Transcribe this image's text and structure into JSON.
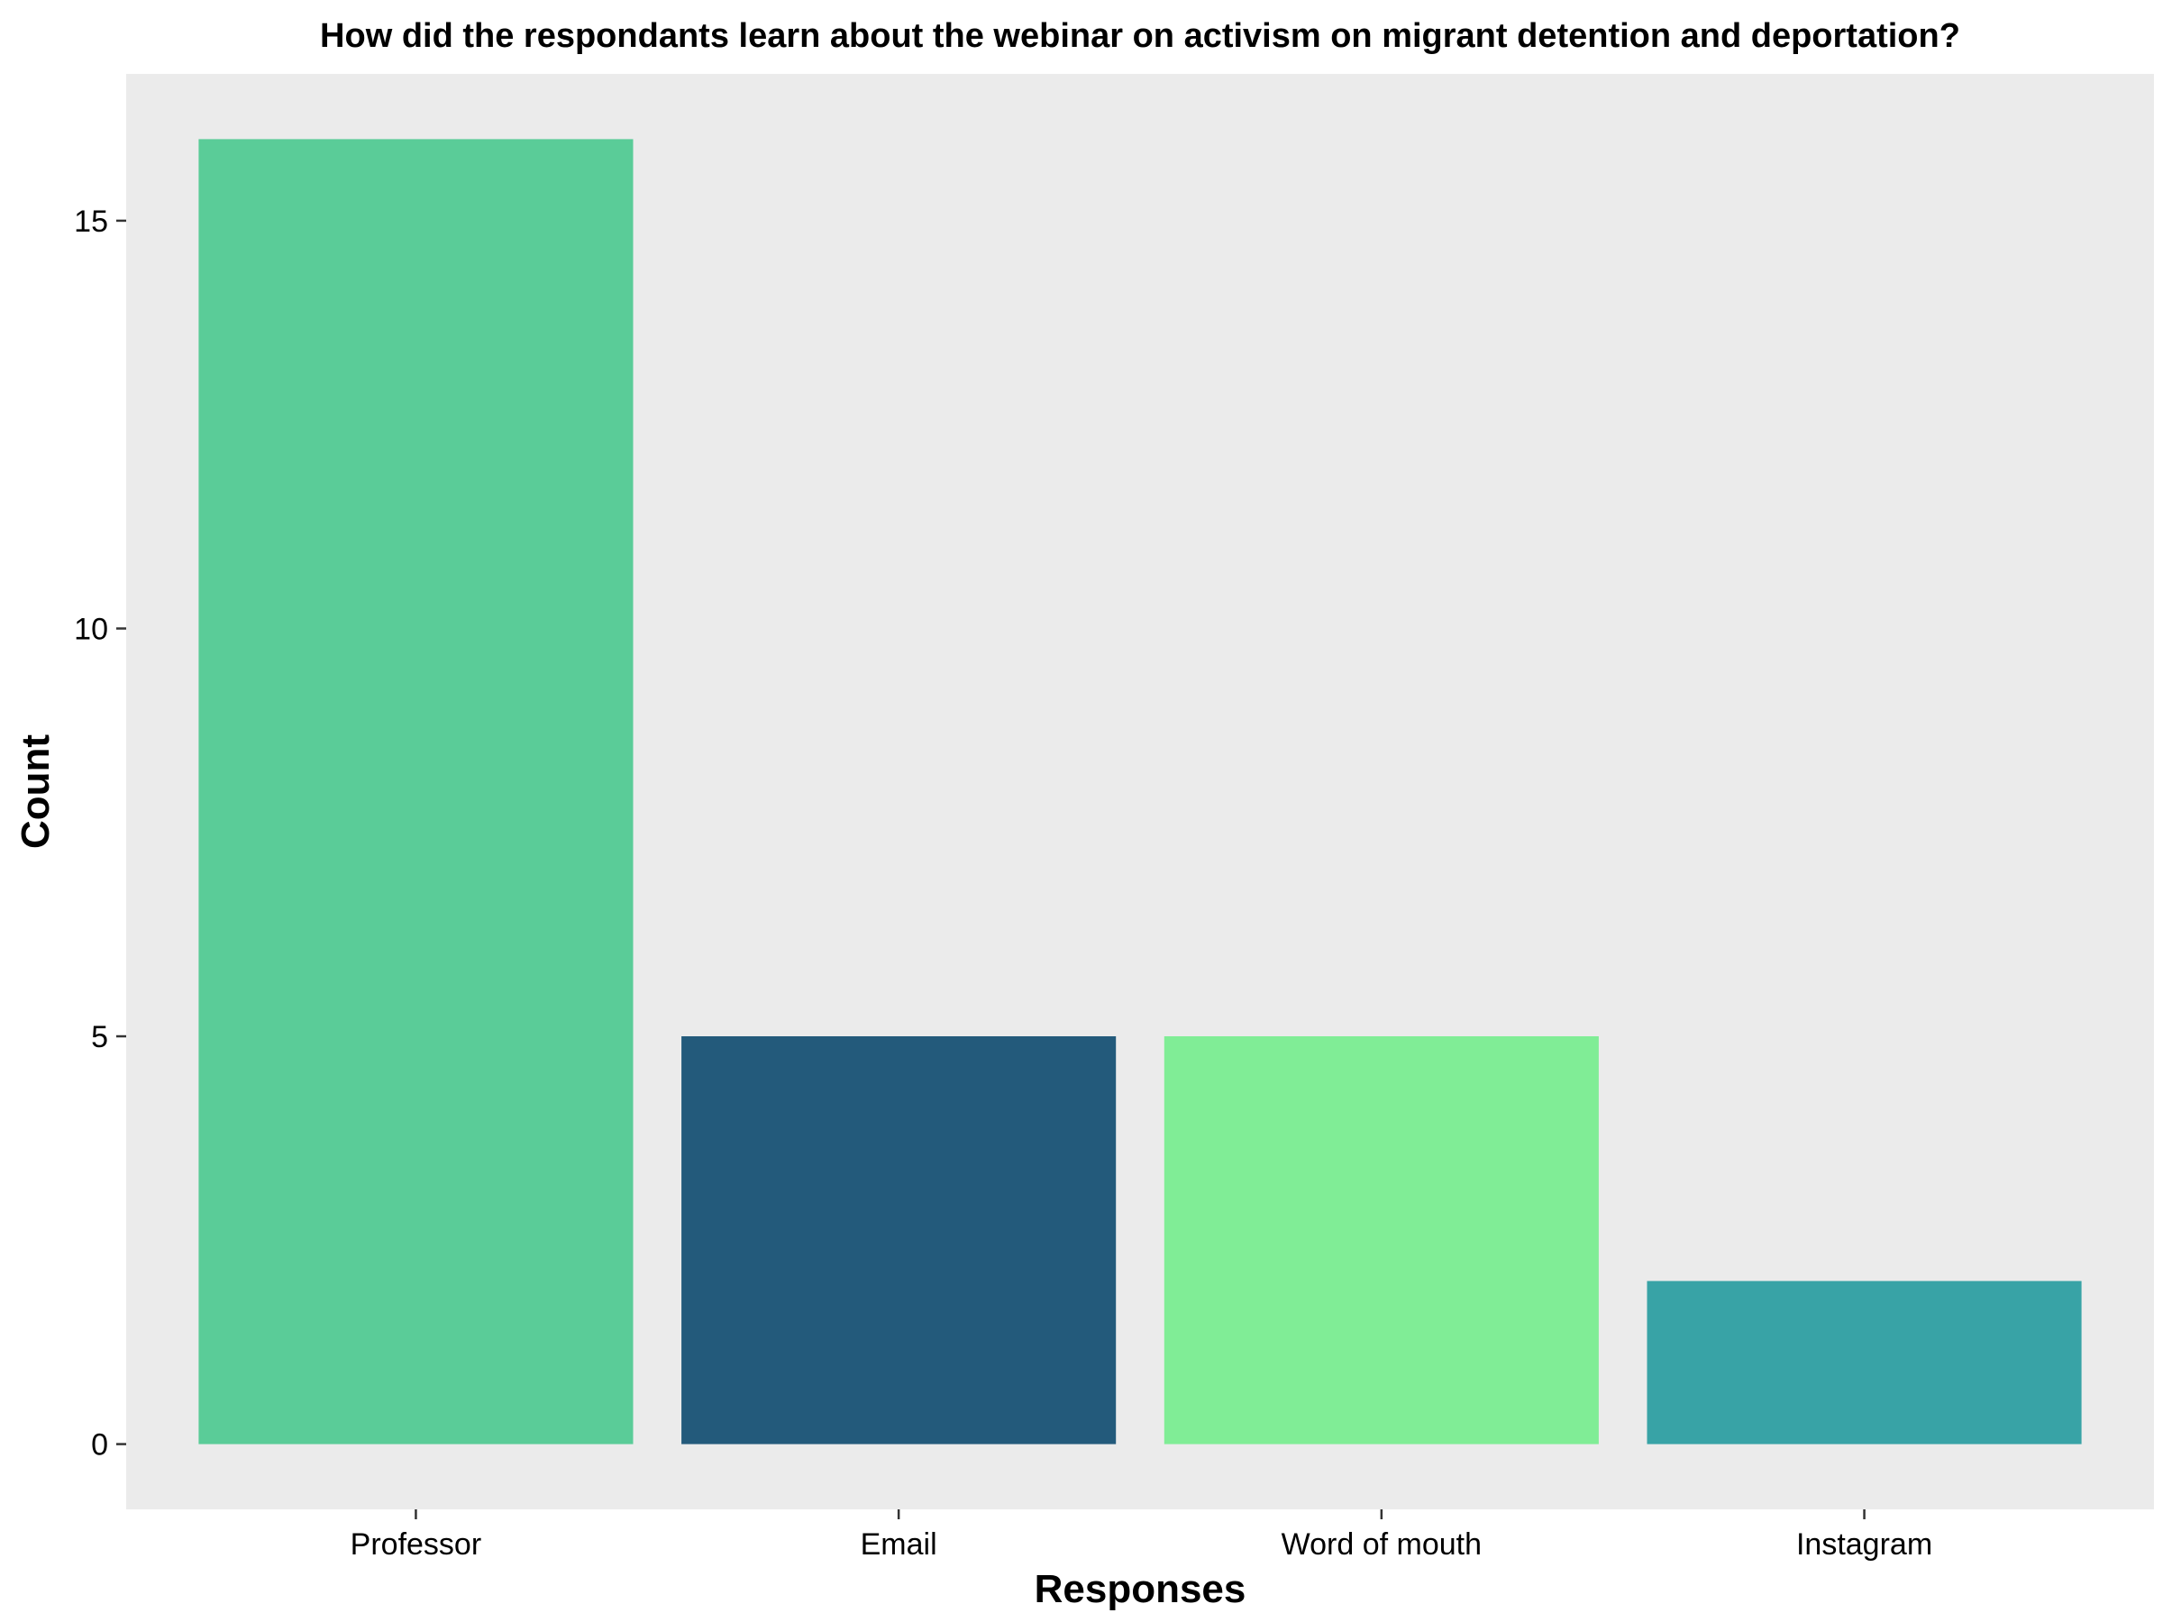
{
  "chart_data": {
    "type": "bar",
    "title": "How did the respondants learn about the webinar on activism on migrant detention and deportation?",
    "xlabel": "Responses",
    "ylabel": "Count",
    "categories": [
      "Professor",
      "Email",
      "Word of mouth",
      "Instagram"
    ],
    "values": [
      16,
      5,
      5,
      2
    ],
    "colors": [
      "#5ACC98",
      "#235A7B",
      "#80ED96",
      "#38A3A6"
    ],
    "yticks": [
      0,
      5,
      10,
      15
    ],
    "ytick_labels": [
      "0",
      "5",
      "10",
      "15"
    ],
    "ylim": [
      -0.8,
      16.8
    ],
    "grid": false,
    "legend": "none",
    "panel_background": "#EBEBEB"
  }
}
